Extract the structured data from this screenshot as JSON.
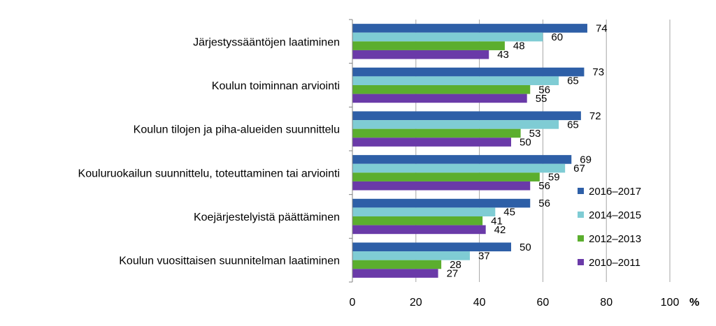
{
  "chart_data": {
    "type": "bar",
    "orientation": "horizontal",
    "categories": [
      "Järjestyssääntöjen laatiminen",
      "Koulun toiminnan arviointi",
      "Koulun tilojen ja piha-alueiden suunnittelu",
      "Kouluruokailun suunnittelu, toteuttaminen tai arviointi",
      "Koejärjestelyistä päättäminen",
      "Koulun vuosittaisen suunnitelman laatiminen"
    ],
    "series": [
      {
        "name": "2016–2017",
        "color": "#2E5FA7",
        "values": [
          74,
          73,
          72,
          69,
          56,
          50
        ]
      },
      {
        "name": "2014–2015",
        "color": "#7FCCD4",
        "values": [
          60,
          65,
          65,
          67,
          45,
          37
        ]
      },
      {
        "name": "2012–2013",
        "color": "#5BAE2E",
        "values": [
          48,
          56,
          53,
          59,
          41,
          28
        ]
      },
      {
        "name": "2010–2011",
        "color": "#6A3AA8",
        "values": [
          43,
          55,
          50,
          56,
          42,
          27
        ]
      }
    ],
    "xlim": [
      0,
      100
    ],
    "xticks": [
      0,
      20,
      40,
      60,
      80,
      100
    ],
    "x_unit": "%",
    "grid": "vertical",
    "legend_position": "right"
  }
}
